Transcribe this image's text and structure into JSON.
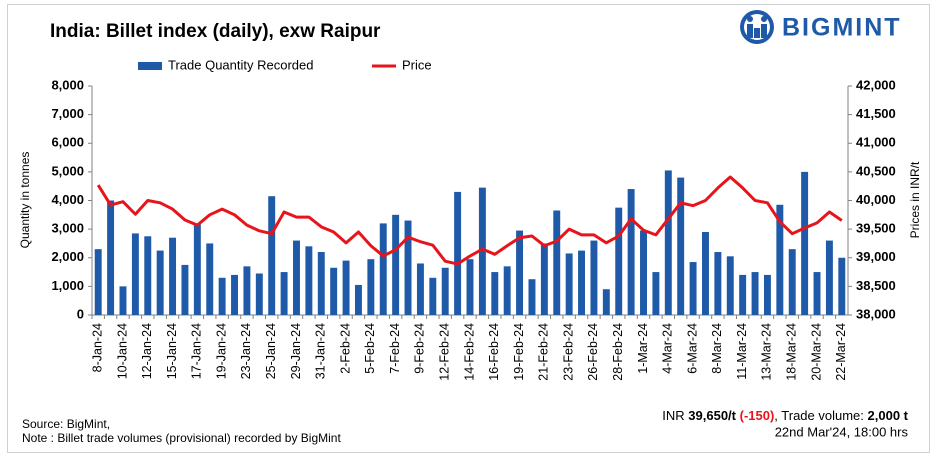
{
  "chart_data": {
    "type": "bar-line",
    "title": "India: Billet index (daily), exw Raipur",
    "brand": "BIGMINT",
    "y_label": "Quantity in tonnes",
    "y2_label": "Prices in INR/t",
    "categories": [
      "8-Jan-24",
      null,
      "10-Jan-24",
      null,
      "12-Jan-24",
      null,
      "15-Jan-24",
      null,
      "17-Jan-24",
      null,
      "19-Jan-24",
      null,
      "23-Jan-24",
      null,
      "25-Jan-24",
      null,
      "29-Jan-24",
      null,
      "31-Jan-24",
      null,
      "2-Feb-24",
      null,
      "5-Feb-24",
      null,
      "7-Feb-24",
      null,
      "9-Feb-24",
      null,
      "12-Feb-24",
      null,
      "14-Feb-24",
      null,
      "16-Feb-24",
      null,
      "19-Feb-24",
      null,
      "21-Feb-24",
      null,
      "23-Feb-24",
      null,
      "26-Feb-24",
      null,
      "28-Feb-24",
      null,
      "1-Mar-24",
      null,
      "4-Mar-24",
      null,
      "6-Mar-24",
      null,
      "8-Mar-24",
      null,
      "11-Mar-24",
      null,
      "13-Mar-24",
      null,
      "18-Mar-24",
      null,
      "20-Mar-24",
      null,
      "22-Mar-24"
    ],
    "series": [
      {
        "name": "Trade Quantity Recorded",
        "type": "bar",
        "color": "#1f5aa8",
        "values": [
          2300,
          4000,
          1000,
          2850,
          2750,
          2250,
          2700,
          1750,
          3200,
          2500,
          1300,
          1400,
          1700,
          1450,
          4150,
          1500,
          2600,
          2400,
          2200,
          1650,
          1900,
          1050,
          1950,
          3200,
          3500,
          3300,
          1800,
          1300,
          1650,
          4300,
          1950,
          4450,
          1500,
          1700,
          2950,
          1250,
          2500,
          3650,
          2150,
          2250,
          2600,
          900,
          3750,
          4400,
          2950,
          1500,
          5050,
          4800,
          1850,
          2900,
          2200,
          2050,
          1400,
          1500,
          1400,
          3850,
          2300,
          5000,
          1500,
          2600,
          2000
        ]
      },
      {
        "name": "Price",
        "type": "line",
        "axis": "y2",
        "color": "#e8141b",
        "values": [
          40270,
          39920,
          39980,
          39760,
          40000,
          39960,
          39850,
          39660,
          39570,
          39750,
          39850,
          39750,
          39570,
          39470,
          39420,
          39800,
          39710,
          39710,
          39540,
          39450,
          39260,
          39450,
          39210,
          39030,
          39140,
          39360,
          39280,
          39220,
          38940,
          38890,
          39030,
          39150,
          39060,
          39210,
          39350,
          39380,
          39210,
          39290,
          39500,
          39400,
          39400,
          39260,
          39380,
          39680,
          39480,
          39400,
          39680,
          39960,
          39910,
          40000,
          40220,
          40410,
          40220,
          40000,
          39960,
          39630,
          39420,
          39520,
          39610,
          39800,
          39650
        ]
      }
    ],
    "ylim": [
      0,
      8000
    ],
    "yticks": [
      0,
      {
        "value": 1000,
        "label": "1,000"
      },
      {
        "value": 2000,
        "label": "2,000"
      },
      {
        "value": 3000,
        "label": "3,000"
      },
      {
        "value": 4000,
        "label": "4,000"
      },
      {
        "value": 5000,
        "label": "5,000"
      },
      {
        "value": 6000,
        "label": "6,000"
      },
      {
        "value": 7000,
        "label": "7,000"
      },
      {
        "value": 8000,
        "label": "8,000"
      }
    ],
    "y2lim": [
      38000,
      42000
    ],
    "y2ticks": [
      {
        "value": 38000,
        "label": "38,000"
      },
      {
        "value": 38500,
        "label": "38,500"
      },
      {
        "value": 39000,
        "label": "39,000"
      },
      {
        "value": 39500,
        "label": "39,500"
      },
      {
        "value": 40000,
        "label": "40,000"
      },
      {
        "value": 40500,
        "label": "40,500"
      },
      {
        "value": 41000,
        "label": "41,000"
      },
      {
        "value": 41500,
        "label": "41,500"
      },
      {
        "value": 42000,
        "label": "42,000"
      }
    ],
    "grid": false,
    "legend": "top",
    "footer": {
      "source": "Source: BigMint,",
      "note": "Note : Billet trade volumes (provisional) recorded by BigMint",
      "summary": [
        "INR ",
        "39,650/t",
        " (-150)",
        ", Trade volume: ",
        "2,000 t"
      ],
      "timestamp": "22nd Mar'24, 18:00 hrs"
    }
  }
}
